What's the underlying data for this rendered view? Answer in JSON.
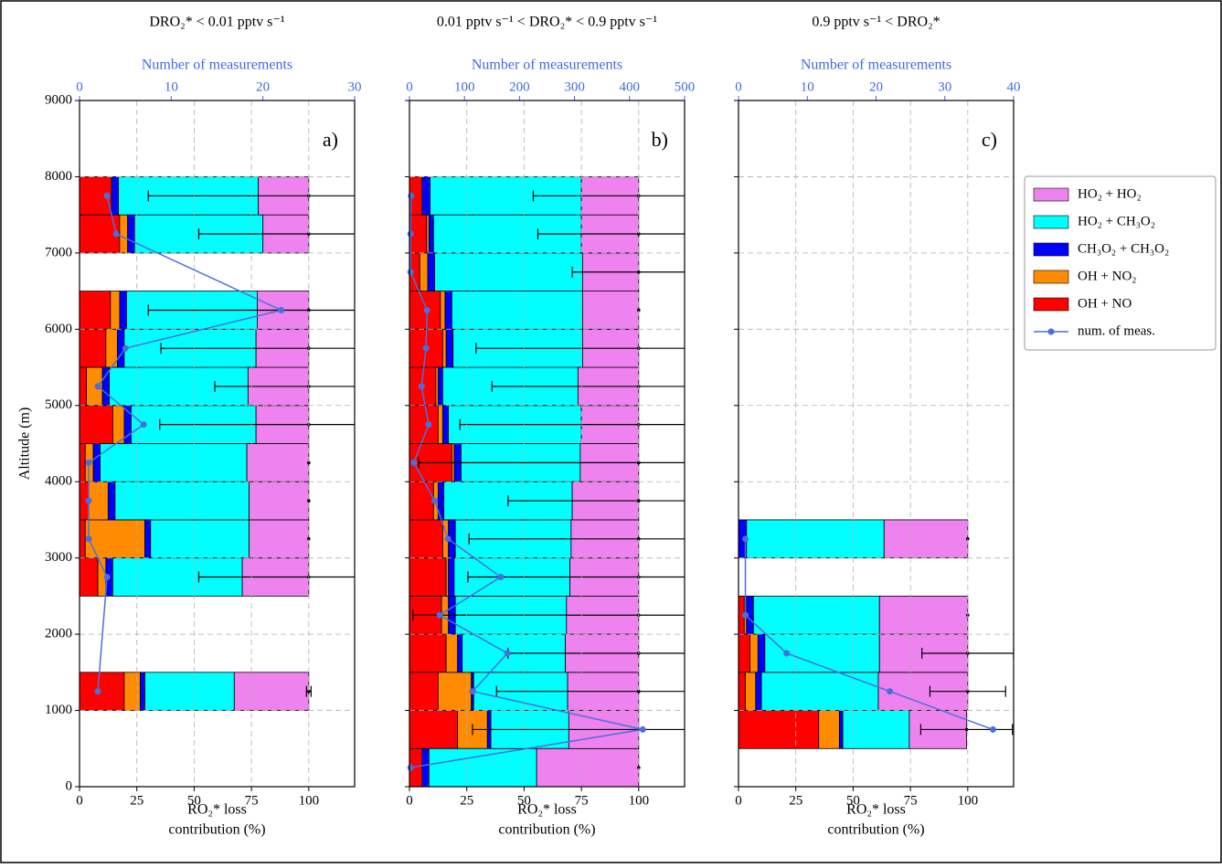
{
  "chart_data": [
    {
      "type": "barh",
      "title": "DRO₂* < 0.01 pptv s⁻¹",
      "panel_label": "a)",
      "ylabel": "Altitude (m)",
      "xlabel_lines": [
        "RO₂* loss",
        "contribution (%)"
      ],
      "x2label": "Number of measurements",
      "y": [
        1250,
        2750,
        3250,
        3750,
        4250,
        4750,
        5250,
        5750,
        6250,
        7250,
        7750
      ],
      "series": [
        {
          "color": "#ff0000",
          "values": [
            19.5,
            8,
            2.5,
            4,
            2.5,
            14.5,
            3,
            11.5,
            13.5,
            17.5,
            14
          ]
        },
        {
          "color": "#ff8c00",
          "values": [
            7,
            3.5,
            26,
            8.5,
            3.5,
            5,
            7,
            5,
            4,
            3.5,
            0
          ]
        },
        {
          "color": "#0000ff",
          "values": [
            2,
            3,
            2.5,
            3,
            3,
            3,
            3,
            3,
            3,
            3,
            3
          ]
        },
        {
          "color": "#00ffff",
          "values": [
            39,
            56.5,
            43,
            58.5,
            64,
            54.5,
            60.5,
            57.5,
            57,
            56,
            61
          ]
        },
        {
          "color": "#ee82ee",
          "values": [
            32.5,
            29,
            26,
            26,
            27,
            23,
            26.5,
            23,
            22.5,
            20,
            22
          ]
        }
      ],
      "errors": [
        1,
        48,
        0,
        0,
        0,
        65,
        41,
        64.5,
        70,
        48,
        70
      ],
      "measurements": {
        "color": "#4a6fdc",
        "axis": "x2",
        "values": [
          2,
          3,
          1,
          1,
          1,
          7,
          2,
          5,
          22,
          4,
          3
        ]
      },
      "xlim": [
        0,
        120
      ],
      "xticks": [
        0,
        25,
        50,
        75,
        100
      ],
      "x2lim": [
        0,
        30
      ],
      "x2ticks": [
        0,
        10,
        20,
        30
      ],
      "ylim": [
        0,
        9000
      ],
      "yticks": [
        0,
        1000,
        2000,
        3000,
        4000,
        5000,
        6000,
        7000,
        8000,
        9000
      ],
      "ytick_labels": true,
      "grid": true
    },
    {
      "type": "barh",
      "title": "0.01 pptv s⁻¹ <  DRO₂* < 0.9 pptv s⁻¹",
      "panel_label": "b)",
      "xlabel_lines": [
        "RO₂* loss",
        "contribution (%)"
      ],
      "x2label": "Number of measurements",
      "y": [
        250,
        750,
        1250,
        1750,
        2250,
        2750,
        3250,
        3750,
        4250,
        4750,
        5250,
        5750,
        6250,
        6750,
        7250,
        7750
      ],
      "series": [
        {
          "color": "#ff0000",
          "values": [
            5.5,
            21,
            12.5,
            16,
            14,
            16,
            14.5,
            10.5,
            18.5,
            12.5,
            11.5,
            14.5,
            13.5,
            4.5,
            7.5,
            5.5
          ]
        },
        {
          "color": "#ff8c00",
          "values": [
            0,
            13,
            14.5,
            5,
            3,
            1,
            2.5,
            2,
            1,
            2,
            1,
            1.5,
            2,
            3.5,
            1,
            0
          ]
        },
        {
          "color": "#0000ff",
          "values": [
            3,
            1.5,
            1,
            2,
            3,
            2.5,
            3,
            2.5,
            3,
            2.5,
            2,
            3,
            3,
            3,
            2,
            3.5
          ]
        },
        {
          "color": "#00ffff",
          "values": [
            47,
            34,
            41,
            45,
            48.5,
            50.5,
            50.5,
            56,
            52,
            58,
            59,
            56.5,
            57,
            64.5,
            64.5,
            66
          ]
        },
        {
          "color": "#ee82ee",
          "values": [
            44.5,
            30.5,
            31,
            32,
            31.5,
            30,
            29.5,
            29,
            25.5,
            25,
            26.5,
            24.5,
            24.5,
            24.5,
            25,
            25
          ]
        }
      ],
      "errors": [
        0,
        72.5,
        62,
        57,
        98.5,
        74.5,
        74,
        57,
        96,
        78,
        64,
        71,
        0,
        29,
        44,
        46
      ],
      "measurements": {
        "color": "#4a6fdc",
        "axis": "x2",
        "values": [
          2,
          424,
          115,
          178,
          55,
          166,
          70,
          46,
          8,
          35,
          22,
          30,
          32,
          2,
          2,
          3
        ]
      },
      "xlim": [
        0,
        120
      ],
      "xticks": [
        0,
        25,
        50,
        75,
        100
      ],
      "x2lim": [
        0,
        500
      ],
      "x2ticks": [
        0,
        100,
        200,
        300,
        400,
        500
      ],
      "ylim": [
        0,
        9000
      ],
      "yticks": [
        0,
        1000,
        2000,
        3000,
        4000,
        5000,
        6000,
        7000,
        8000,
        9000
      ],
      "ytick_labels": false,
      "grid": true
    },
    {
      "type": "barh",
      "title": "0.9 pptv s⁻¹ < DRO₂*",
      "panel_label": "c)",
      "xlabel_lines": [
        "RO₂* loss",
        "contribution (%)"
      ],
      "x2label": "Number of measurements",
      "y": [
        750,
        1250,
        1750,
        2250,
        3250
      ],
      "series": [
        {
          "name": "OH + NO",
          "color": "#ff0000",
          "values": [
            35,
            3,
            5,
            2.5,
            0
          ]
        },
        {
          "name": "OH + NO₂",
          "color": "#ff8c00",
          "values": [
            9,
            4.5,
            3.5,
            1,
            0
          ]
        },
        {
          "name": "CH₃O₂ + CH₃O₂",
          "color": "#0000ff",
          "values": [
            1.5,
            2.5,
            3,
            3,
            3.5
          ]
        },
        {
          "name": "HO₂ + CH₃O₂",
          "color": "#00ffff",
          "values": [
            29,
            51,
            50,
            55,
            60
          ]
        },
        {
          "name": "HO₂ + HO₂",
          "color": "#ee82ee",
          "values": [
            25,
            39,
            38.5,
            38.5,
            36.5
          ]
        }
      ],
      "errors": [
        20,
        16.5,
        20,
        0,
        0
      ],
      "measurements": {
        "name": "num. of meas.",
        "color": "#4a6fdc",
        "axis": "x2",
        "values": [
          37,
          22,
          7,
          1,
          1
        ]
      },
      "xlim": [
        0,
        120
      ],
      "xticks": [
        0,
        25,
        50,
        75,
        100
      ],
      "x2lim": [
        0,
        40
      ],
      "x2ticks": [
        0,
        10,
        20,
        30,
        40
      ],
      "ylim": [
        0,
        9000
      ],
      "yticks": [
        0,
        1000,
        2000,
        3000,
        4000,
        5000,
        6000,
        7000,
        8000,
        9000
      ],
      "ytick_labels": false,
      "grid": true,
      "legend": "right outside"
    }
  ]
}
